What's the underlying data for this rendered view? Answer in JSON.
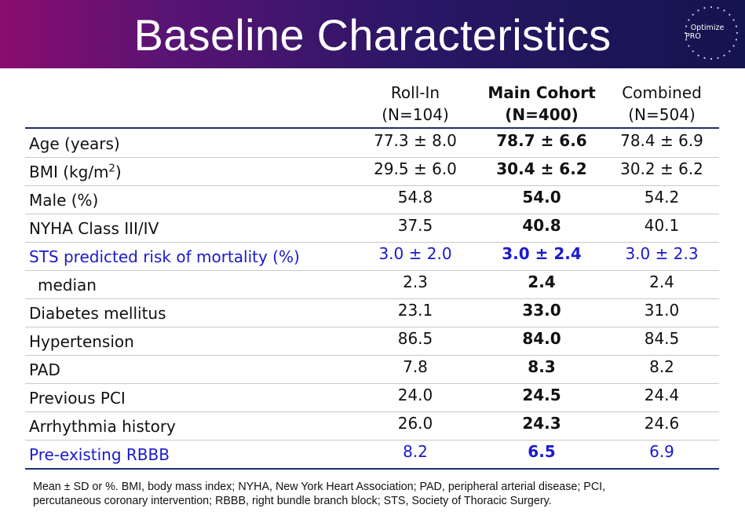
{
  "slide": {
    "title": "Baseline Characteristics",
    "logo": {
      "line1": "Optimize",
      "line2": "PRO"
    },
    "header_gradient": [
      "#8a0c6e",
      "#2a1766",
      "#14144e"
    ],
    "highlight_color": "#1a1acc"
  },
  "table": {
    "columns": [
      {
        "name": "Roll-In",
        "n": "(N=104)"
      },
      {
        "name": "Main Cohort",
        "n": "(N=400)"
      },
      {
        "name": "Combined",
        "n": "(N=504)"
      }
    ],
    "rows": [
      {
        "label": "Age (years)",
        "roll_in": "77.3 ± 8.0",
        "main": "78.7 ± 6.6",
        "combined": "78.4 ± 6.9"
      },
      {
        "label_base": "BMI (kg/m",
        "label_sup": "2",
        "label_end": ")",
        "roll_in": "29.5 ± 6.0",
        "main": "30.4 ± 6.2",
        "combined": "30.2 ± 6.2"
      },
      {
        "label": "Male (%)",
        "roll_in": "54.8",
        "main": "54.0",
        "combined": "54.2"
      },
      {
        "label": "NYHA Class III/IV",
        "roll_in": "37.5",
        "main": "40.8",
        "combined": "40.1"
      },
      {
        "label": "STS predicted risk of mortality (%)",
        "roll_in": "3.0 ± 2.0",
        "main": "3.0 ± 2.4",
        "combined": "3.0 ± 2.3"
      },
      {
        "label": "median",
        "roll_in": "2.3",
        "main": "2.4",
        "combined": "2.4"
      },
      {
        "label": "Diabetes mellitus",
        "roll_in": "23.1",
        "main": "33.0",
        "combined": "31.0"
      },
      {
        "label": "Hypertension",
        "roll_in": "86.5",
        "main": "84.0",
        "combined": "84.5"
      },
      {
        "label": "PAD",
        "roll_in": "7.8",
        "main": "8.3",
        "combined": "8.2"
      },
      {
        "label": "Previous PCI",
        "roll_in": "24.0",
        "main": "24.5",
        "combined": "24.4"
      },
      {
        "label": "Arrhythmia history",
        "roll_in": "26.0",
        "main": "24.3",
        "combined": "24.6"
      },
      {
        "label": "Pre-existing RBBB",
        "roll_in": "8.2",
        "main": "6.5",
        "combined": "6.9"
      }
    ]
  },
  "footnote": {
    "line1": "Mean ± SD or %. BMI, body mass index; NYHA, New York Heart Association; PAD, peripheral arterial disease; PCI,",
    "line2": "percutaneous coronary intervention; RBBB, right bundle branch block; STS, Society of Thoracic Surgery."
  }
}
